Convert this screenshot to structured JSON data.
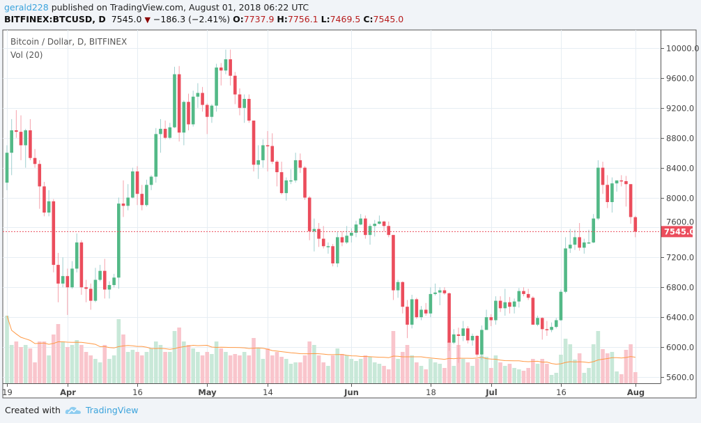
{
  "header": {
    "user": "gerald228",
    "published": "published on TradingView.com, August 01, 2018 06:22 UTC",
    "symbol": "BITFINEX:BTCUSD, D",
    "last": "7545.0",
    "change": "−186.3 (−2.41%)",
    "o_label": "O:",
    "o": "7737.9",
    "h_label": "H:",
    "h": "7756.1",
    "l_label": "L:",
    "l": "7469.5",
    "c_label": "C:",
    "c": "7545.0"
  },
  "legend": {
    "title": "Bitcoin / Dollar, D, BITFINEX",
    "volume": "Vol (20)"
  },
  "footer": {
    "created_with": "Created with",
    "brand": "TradingView"
  },
  "colors": {
    "up": "#53b987",
    "down": "#eb4d5c",
    "vol_up": "#c8e8d8",
    "vol_down": "#f9c5cc",
    "ma": "#ff9843",
    "last_price": "#eb4d5c"
  },
  "chart_data": {
    "type": "candlestick",
    "ylim": [
      5500,
      10150
    ],
    "y_ticks": [
      "10000.0",
      "9600.0",
      "9200.0",
      "8800.0",
      "8400.0",
      "8000.0",
      "7600.0",
      "7200.0",
      "6800.0",
      "6400.0",
      "6000.0",
      "5600.0"
    ],
    "x_ticks": [
      [
        "2018-03-19",
        "19"
      ],
      [
        "2018-04-01",
        "Apr"
      ],
      [
        "2018-04-16",
        "16"
      ],
      [
        "2018-05-01",
        "May"
      ],
      [
        "2018-05-14",
        "14"
      ],
      [
        "2018-06-01",
        "Jun"
      ],
      [
        "2018-06-18",
        "18"
      ],
      [
        "2018-07-01",
        "Jul"
      ],
      [
        "2018-07-16",
        "16"
      ],
      [
        "2018-08-01",
        "Aug"
      ]
    ],
    "last_price": 7545.0,
    "last_price_label": "7545.0",
    "volume_ma_period": 20,
    "grid": true,
    "columns": [
      "date",
      "open",
      "high",
      "low",
      "close",
      "volume_relative"
    ],
    "candles": [
      [
        "2018-03-19",
        8200,
        8700,
        8100,
        8600,
        97
      ],
      [
        "2018-03-20",
        8600,
        9050,
        8300,
        8900,
        55
      ],
      [
        "2018-03-21",
        8900,
        9170,
        8800,
        8880,
        60
      ],
      [
        "2018-03-22",
        8880,
        9100,
        8500,
        8700,
        52
      ],
      [
        "2018-03-23",
        8700,
        8920,
        8400,
        8900,
        55
      ],
      [
        "2018-03-24",
        8900,
        9050,
        8500,
        8530,
        50
      ],
      [
        "2018-03-25",
        8530,
        8650,
        8400,
        8450,
        30
      ],
      [
        "2018-03-26",
        8450,
        8500,
        7850,
        8150,
        60
      ],
      [
        "2018-03-27",
        8150,
        8210,
        7750,
        7800,
        60
      ],
      [
        "2018-03-28",
        7800,
        8100,
        7750,
        7950,
        40
      ],
      [
        "2018-03-29",
        7950,
        7980,
        7000,
        7100,
        70
      ],
      [
        "2018-03-30",
        7100,
        7260,
        6600,
        6850,
        85
      ],
      [
        "2018-03-31",
        6850,
        7200,
        6800,
        6950,
        60
      ],
      [
        "2018-04-01",
        6950,
        7050,
        6430,
        6800,
        52
      ],
      [
        "2018-04-02",
        6800,
        7150,
        6780,
        7050,
        55
      ],
      [
        "2018-04-03",
        7050,
        7520,
        7000,
        7400,
        62
      ],
      [
        "2018-04-04",
        7400,
        7430,
        6700,
        6800,
        55
      ],
      [
        "2018-04-05",
        6800,
        6900,
        6600,
        6780,
        45
      ],
      [
        "2018-04-06",
        6780,
        6850,
        6500,
        6620,
        40
      ],
      [
        "2018-04-07",
        6620,
        7060,
        6600,
        6900,
        35
      ],
      [
        "2018-04-08",
        6900,
        7100,
        6880,
        7020,
        30
      ],
      [
        "2018-04-09",
        7020,
        7180,
        6650,
        6770,
        55
      ],
      [
        "2018-04-10",
        6770,
        6880,
        6650,
        6830,
        35
      ],
      [
        "2018-04-11",
        6830,
        6980,
        6800,
        6930,
        40
      ],
      [
        "2018-04-12",
        6930,
        8000,
        6780,
        7920,
        92
      ],
      [
        "2018-04-13",
        7920,
        8230,
        7740,
        7890,
        70
      ],
      [
        "2018-04-14",
        7890,
        8180,
        7830,
        8000,
        45
      ],
      [
        "2018-04-15",
        8000,
        8400,
        7990,
        8350,
        48
      ],
      [
        "2018-04-16",
        8350,
        8420,
        7900,
        8050,
        45
      ],
      [
        "2018-04-17",
        8050,
        8170,
        7830,
        7900,
        40
      ],
      [
        "2018-04-18",
        7900,
        8240,
        7880,
        8170,
        45
      ],
      [
        "2018-04-19",
        8170,
        8300,
        8100,
        8280,
        50
      ],
      [
        "2018-04-20",
        8280,
        8930,
        8200,
        8850,
        60
      ],
      [
        "2018-04-21",
        8850,
        9050,
        8600,
        8920,
        55
      ],
      [
        "2018-04-22",
        8920,
        9030,
        8780,
        8800,
        45
      ],
      [
        "2018-04-23",
        8800,
        9000,
        8780,
        8940,
        45
      ],
      [
        "2018-04-24",
        8940,
        9750,
        8930,
        9650,
        75
      ],
      [
        "2018-04-25",
        9650,
        9760,
        8750,
        8870,
        80
      ],
      [
        "2018-04-26",
        8870,
        9300,
        8700,
        9280,
        60
      ],
      [
        "2018-04-27",
        9280,
        9390,
        8900,
        8980,
        55
      ],
      [
        "2018-04-28",
        8980,
        9430,
        8950,
        9350,
        50
      ],
      [
        "2018-04-29",
        9350,
        9530,
        9200,
        9400,
        45
      ],
      [
        "2018-04-30",
        9400,
        9480,
        9150,
        9240,
        40
      ],
      [
        "2018-05-01",
        9240,
        9260,
        8850,
        9080,
        45
      ],
      [
        "2018-05-02",
        9080,
        9250,
        9000,
        9230,
        42
      ],
      [
        "2018-05-03",
        9230,
        9790,
        9150,
        9740,
        60
      ],
      [
        "2018-05-04",
        9740,
        9800,
        9500,
        9700,
        50
      ],
      [
        "2018-05-05",
        9700,
        9980,
        9650,
        9850,
        45
      ],
      [
        "2018-05-06",
        9850,
        9980,
        9500,
        9630,
        40
      ],
      [
        "2018-05-07",
        9630,
        9680,
        9250,
        9380,
        42
      ],
      [
        "2018-05-08",
        9380,
        9460,
        9100,
        9200,
        40
      ],
      [
        "2018-05-09",
        9200,
        9380,
        9000,
        9320,
        45
      ],
      [
        "2018-05-10",
        9320,
        9380,
        9000,
        9030,
        40
      ],
      [
        "2018-05-11",
        9030,
        9030,
        8350,
        8440,
        65
      ],
      [
        "2018-05-12",
        8440,
        8700,
        8250,
        8500,
        50
      ],
      [
        "2018-05-13",
        8500,
        8780,
        8400,
        8700,
        35
      ],
      [
        "2018-05-14",
        8700,
        8890,
        8350,
        8690,
        50
      ],
      [
        "2018-05-15",
        8690,
        8860,
        8450,
        8480,
        40
      ],
      [
        "2018-05-16",
        8480,
        8500,
        8150,
        8340,
        45
      ],
      [
        "2018-05-17",
        8340,
        8480,
        8040,
        8060,
        38
      ],
      [
        "2018-05-18",
        8060,
        8270,
        7960,
        8230,
        35
      ],
      [
        "2018-05-19",
        8230,
        8380,
        8180,
        8230,
        28
      ],
      [
        "2018-05-20",
        8230,
        8600,
        8200,
        8500,
        30
      ],
      [
        "2018-05-21",
        8500,
        8590,
        8330,
        8400,
        30
      ],
      [
        "2018-05-22",
        8400,
        8420,
        7970,
        8000,
        40
      ],
      [
        "2018-05-23",
        8000,
        8020,
        7430,
        7550,
        60
      ],
      [
        "2018-05-24",
        7550,
        7720,
        7280,
        7580,
        55
      ],
      [
        "2018-05-25",
        7580,
        7660,
        7340,
        7450,
        40
      ],
      [
        "2018-05-26",
        7450,
        7620,
        7320,
        7350,
        30
      ],
      [
        "2018-05-27",
        7350,
        7400,
        7250,
        7350,
        25
      ],
      [
        "2018-05-28",
        7350,
        7380,
        7080,
        7120,
        40
      ],
      [
        "2018-05-29",
        7120,
        7540,
        7070,
        7470,
        50
      ],
      [
        "2018-05-30",
        7470,
        7550,
        7350,
        7400,
        42
      ],
      [
        "2018-05-31",
        7400,
        7620,
        7380,
        7490,
        40
      ],
      [
        "2018-06-01",
        7490,
        7590,
        7400,
        7530,
        35
      ],
      [
        "2018-06-02",
        7530,
        7690,
        7470,
        7640,
        32
      ],
      [
        "2018-06-03",
        7640,
        7780,
        7630,
        7720,
        35
      ],
      [
        "2018-06-04",
        7720,
        7760,
        7450,
        7500,
        40
      ],
      [
        "2018-06-05",
        7500,
        7650,
        7370,
        7620,
        38
      ],
      [
        "2018-06-06",
        7620,
        7700,
        7480,
        7650,
        30
      ],
      [
        "2018-06-07",
        7650,
        7760,
        7640,
        7680,
        28
      ],
      [
        "2018-06-08",
        7680,
        7690,
        7550,
        7620,
        25
      ],
      [
        "2018-06-09",
        7620,
        7680,
        7470,
        7500,
        20
      ],
      [
        "2018-06-10",
        7500,
        7500,
        6630,
        6760,
        75
      ],
      [
        "2018-06-11",
        6760,
        6900,
        6660,
        6870,
        35
      ],
      [
        "2018-06-12",
        6870,
        6880,
        6450,
        6540,
        45
      ],
      [
        "2018-06-13",
        6540,
        6630,
        6120,
        6300,
        55
      ],
      [
        "2018-06-14",
        6300,
        6700,
        6250,
        6640,
        40
      ],
      [
        "2018-06-15",
        6640,
        6660,
        6380,
        6400,
        30
      ],
      [
        "2018-06-16",
        6400,
        6550,
        6360,
        6500,
        25
      ],
      [
        "2018-06-17",
        6500,
        6590,
        6420,
        6450,
        20
      ],
      [
        "2018-06-18",
        6450,
        6800,
        6400,
        6710,
        35
      ],
      [
        "2018-06-19",
        6710,
        6850,
        6690,
        6730,
        30
      ],
      [
        "2018-06-20",
        6730,
        6800,
        6560,
        6760,
        28
      ],
      [
        "2018-06-21",
        6760,
        6800,
        6700,
        6720,
        22
      ],
      [
        "2018-06-22",
        6720,
        6730,
        5950,
        6060,
        60
      ],
      [
        "2018-06-23",
        6060,
        6240,
        6040,
        6170,
        25
      ],
      [
        "2018-06-24",
        6170,
        6260,
        5790,
        6150,
        55
      ],
      [
        "2018-06-25",
        6150,
        6350,
        6080,
        6250,
        35
      ],
      [
        "2018-06-26",
        6250,
        6280,
        6050,
        6090,
        30
      ],
      [
        "2018-06-27",
        6090,
        6180,
        6020,
        6150,
        25
      ],
      [
        "2018-06-28",
        6150,
        6160,
        5870,
        5900,
        35
      ],
      [
        "2018-06-29",
        5900,
        6290,
        5830,
        6230,
        40
      ],
      [
        "2018-06-30",
        6230,
        6500,
        6230,
        6400,
        38
      ],
      [
        "2018-07-01",
        6400,
        6440,
        6280,
        6360,
        22
      ],
      [
        "2018-07-02",
        6360,
        6680,
        6300,
        6620,
        40
      ],
      [
        "2018-07-03",
        6620,
        6680,
        6470,
        6520,
        30
      ],
      [
        "2018-07-04",
        6520,
        6780,
        6420,
        6600,
        25
      ],
      [
        "2018-07-05",
        6600,
        6670,
        6450,
        6540,
        28
      ],
      [
        "2018-07-06",
        6540,
        6650,
        6450,
        6610,
        22
      ],
      [
        "2018-07-07",
        6610,
        6790,
        6530,
        6750,
        20
      ],
      [
        "2018-07-08",
        6750,
        6800,
        6680,
        6710,
        18
      ],
      [
        "2018-07-09",
        6710,
        6780,
        6630,
        6660,
        22
      ],
      [
        "2018-07-10",
        6660,
        6680,
        6300,
        6300,
        35
      ],
      [
        "2018-07-11",
        6300,
        6420,
        6280,
        6390,
        28
      ],
      [
        "2018-07-12",
        6390,
        6400,
        6100,
        6240,
        35
      ],
      [
        "2018-07-13",
        6240,
        6350,
        6150,
        6230,
        28
      ],
      [
        "2018-07-14",
        6230,
        6330,
        6200,
        6270,
        12
      ],
      [
        "2018-07-15",
        6270,
        6390,
        6250,
        6360,
        15
      ],
      [
        "2018-07-16",
        6360,
        6770,
        6350,
        6740,
        41
      ],
      [
        "2018-07-17",
        6740,
        7470,
        6720,
        7320,
        64
      ],
      [
        "2018-07-18",
        7320,
        7580,
        7260,
        7370,
        56
      ],
      [
        "2018-07-19",
        7370,
        7570,
        7300,
        7470,
        34
      ],
      [
        "2018-07-20",
        7470,
        7660,
        7290,
        7330,
        43
      ],
      [
        "2018-07-21",
        7330,
        7450,
        7250,
        7400,
        15
      ],
      [
        "2018-07-22",
        7400,
        7570,
        7380,
        7400,
        22
      ],
      [
        "2018-07-23",
        7400,
        7780,
        7390,
        7720,
        56
      ],
      [
        "2018-07-24",
        7720,
        8500,
        7700,
        8400,
        75
      ],
      [
        "2018-07-25",
        8400,
        8480,
        8050,
        8170,
        49
      ],
      [
        "2018-07-26",
        8170,
        8300,
        7860,
        7940,
        43
      ],
      [
        "2018-07-27",
        7940,
        8270,
        7800,
        8190,
        45
      ],
      [
        "2018-07-28",
        8190,
        8230,
        8080,
        8230,
        17
      ],
      [
        "2018-07-29",
        8230,
        8300,
        8150,
        8220,
        13
      ],
      [
        "2018-07-30",
        8220,
        8290,
        7880,
        8180,
        48
      ],
      [
        "2018-07-31",
        8180,
        8180,
        7650,
        7740,
        56
      ],
      [
        "2018-08-01",
        7737.9,
        7756.1,
        7469.5,
        7545.0,
        16
      ]
    ]
  }
}
